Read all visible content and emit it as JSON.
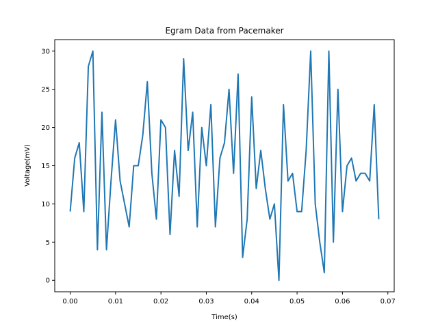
{
  "chart_data": {
    "type": "line",
    "title": "Egram Data from Pacemaker",
    "xlabel": "Time(s)",
    "ylabel": "Voltage(mV)",
    "xlim": [
      -0.0034,
      0.0714
    ],
    "ylim": [
      -1.5,
      31.5
    ],
    "xticks": [
      0.0,
      0.01,
      0.02,
      0.03,
      0.04,
      0.05,
      0.06,
      0.07
    ],
    "xtick_labels": [
      "0.00",
      "0.01",
      "0.02",
      "0.03",
      "0.04",
      "0.05",
      "0.06",
      "0.07"
    ],
    "yticks": [
      0,
      5,
      10,
      15,
      20,
      25,
      30
    ],
    "ytick_labels": [
      "0",
      "5",
      "10",
      "15",
      "20",
      "25",
      "30"
    ],
    "grid": false,
    "series": [
      {
        "color": "#1f77b4",
        "x": [
          0.0,
          0.001,
          0.002,
          0.003,
          0.004,
          0.005,
          0.006,
          0.007,
          0.008,
          0.009,
          0.01,
          0.011,
          0.012,
          0.013,
          0.014,
          0.015,
          0.016,
          0.017,
          0.018,
          0.019,
          0.02,
          0.021,
          0.022,
          0.023,
          0.024,
          0.025,
          0.026,
          0.027,
          0.028,
          0.029,
          0.03,
          0.031,
          0.032,
          0.033,
          0.034,
          0.035,
          0.036,
          0.037,
          0.038,
          0.039,
          0.04,
          0.041,
          0.042,
          0.043,
          0.044,
          0.045,
          0.046,
          0.047,
          0.048,
          0.049,
          0.05,
          0.051,
          0.052,
          0.053,
          0.054,
          0.055,
          0.056,
          0.057,
          0.058,
          0.059,
          0.06,
          0.061,
          0.062,
          0.063,
          0.064,
          0.065,
          0.066,
          0.067,
          0.068
        ],
        "y": [
          9,
          16,
          18,
          9,
          28,
          30,
          4,
          22,
          4,
          13,
          21,
          13,
          10,
          7,
          15,
          15,
          19,
          26,
          14,
          8,
          21,
          20,
          6,
          17,
          11,
          29,
          17,
          22,
          7,
          20,
          15,
          23,
          7,
          16,
          18,
          25,
          14,
          27,
          3,
          8,
          24,
          12,
          17,
          12,
          8,
          10,
          0,
          23,
          13,
          14,
          9,
          9,
          17,
          30,
          10,
          5,
          1,
          30,
          5,
          25,
          9,
          15,
          16,
          13,
          14,
          14,
          13,
          23,
          8
        ]
      }
    ]
  }
}
